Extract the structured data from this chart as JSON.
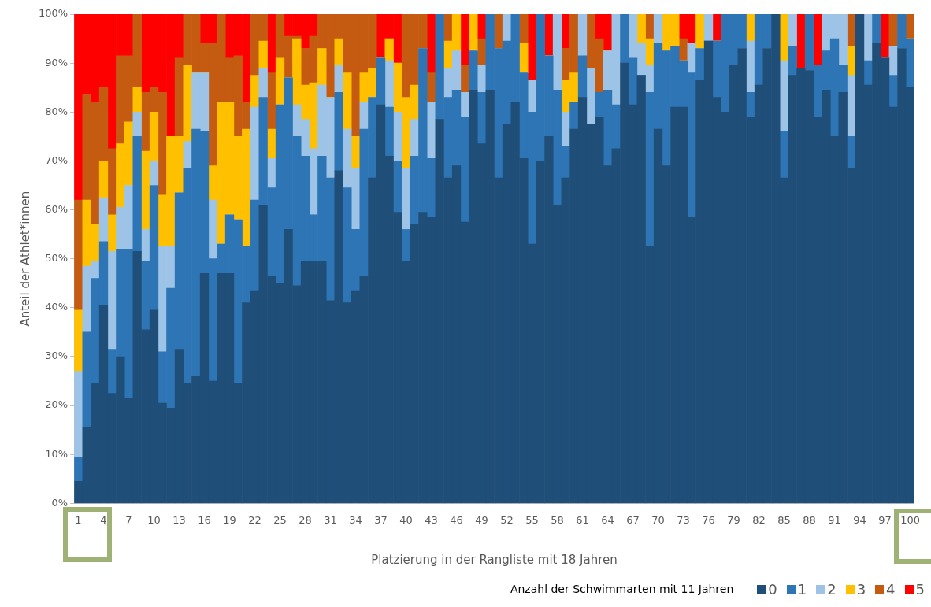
{
  "chart_data": {
    "type": "bar",
    "stacked": true,
    "xlabel": "Platzierung in der Rangliste mit 18 Jahren",
    "ylabel": "Anteil der Athlet*innen",
    "legend_title": "Anzahl der Schwimmarten mit 11 Jahren",
    "legend": "bottom right",
    "grid": false,
    "ylim": [
      0,
      100
    ],
    "yticks": [
      {
        "value": 0,
        "label": "0%"
      },
      {
        "value": 10,
        "label": "10%"
      },
      {
        "value": 20,
        "label": "20%"
      },
      {
        "value": 30,
        "label": "30%"
      },
      {
        "value": 40,
        "label": "40%"
      },
      {
        "value": 50,
        "label": "50%"
      },
      {
        "value": 60,
        "label": "60%"
      },
      {
        "value": 70,
        "label": "70%"
      },
      {
        "value": 80,
        "label": "80%"
      },
      {
        "value": 90,
        "label": "90%"
      },
      {
        "value": 100,
        "label": "100%"
      }
    ],
    "categories": [
      "1",
      null,
      null,
      "4",
      null,
      null,
      "7",
      null,
      null,
      "10",
      null,
      null,
      "13",
      null,
      null,
      "16",
      null,
      null,
      "19",
      null,
      null,
      "22",
      null,
      null,
      "25",
      null,
      null,
      "28",
      null,
      null,
      "31",
      null,
      null,
      "34",
      null,
      null,
      "37",
      null,
      null,
      "40",
      null,
      null,
      "43",
      null,
      null,
      "46",
      null,
      null,
      "49",
      null,
      null,
      "52",
      null,
      null,
      "55",
      null,
      null,
      "58",
      null,
      null,
      "61",
      null,
      null,
      "64",
      null,
      null,
      "67",
      null,
      null,
      "70",
      null,
      null,
      "73",
      null,
      null,
      "76",
      null,
      null,
      "79",
      null,
      null,
      "82",
      null,
      null,
      "85",
      null,
      null,
      "88",
      null,
      null,
      "91",
      null,
      null,
      "94",
      null,
      null,
      "97",
      null,
      null,
      "100"
    ],
    "series": [
      {
        "name": "0",
        "color": "#1f4e79",
        "values": [
          4.5,
          15.5,
          24.5,
          40.5,
          22.5,
          30,
          21.5,
          51.5,
          35.5,
          39.5,
          20.5,
          19.5,
          31.5,
          24.5,
          26,
          47,
          25,
          47,
          47,
          24.5,
          41,
          43.5,
          61,
          46.5,
          45,
          56,
          44.5,
          49.5,
          49.5,
          49.5,
          41.5,
          68,
          41,
          43.5,
          46.5,
          66.5,
          81.5,
          71,
          59.5,
          49.5,
          57,
          59.5,
          58.5,
          78.5,
          66.5,
          69,
          57.5,
          84.5,
          73.5,
          84.5,
          66.5,
          77.5,
          82,
          70.5,
          53,
          70,
          75,
          61,
          66.5,
          76.5,
          83,
          77.5,
          79,
          69,
          72.5,
          90,
          81.5,
          87.5,
          52.5,
          76.5,
          69,
          81,
          81,
          58.5,
          86.5,
          94.5,
          83,
          80,
          89.5,
          93,
          79,
          85.5,
          93,
          100,
          66.5,
          87.5,
          89,
          88.5,
          79,
          84.5,
          75,
          84,
          68.5,
          100,
          85.5,
          94,
          91,
          81,
          93,
          85
        ]
      },
      {
        "name": "1",
        "color": "#2e75b6",
        "values": [
          5,
          19.5,
          21.5,
          13,
          9,
          22,
          30.5,
          23.5,
          14,
          25.5,
          10.5,
          24.5,
          32,
          44,
          50.5,
          29,
          25,
          6,
          12,
          33.5,
          11.5,
          18.5,
          22,
          18,
          36.5,
          31,
          30.5,
          21.5,
          9.5,
          21.5,
          25,
          16,
          23.5,
          12.5,
          30,
          16.5,
          9.5,
          10,
          10.5,
          6.5,
          14,
          33.5,
          12,
          21.5,
          16.5,
          15.5,
          21.5,
          8,
          10.5,
          15.5,
          26.5,
          17,
          18,
          17.5,
          27,
          30,
          16.5,
          23.5,
          6.5,
          5.5,
          8.5,
          0,
          5,
          15.5,
          9,
          10,
          9.5,
          0,
          31.5,
          17.5,
          23.5,
          12.5,
          9.5,
          29.5,
          6.5,
          0,
          11.5,
          20,
          10.5,
          7,
          5,
          14.5,
          7,
          0,
          9.5,
          6,
          0,
          11.5,
          10.5,
          8,
          20,
          5.5,
          6.5,
          0,
          5,
          6,
          0,
          6.5,
          7,
          10
        ]
      },
      {
        "name": "2",
        "color": "#9dc3e6",
        "values": [
          17.5,
          13.5,
          3.5,
          9,
          20,
          8.5,
          13,
          5,
          6.5,
          5,
          21.5,
          8.5,
          0,
          5.5,
          11.5,
          12,
          12,
          0,
          0,
          0,
          0,
          19,
          6,
          6,
          0,
          0,
          6.5,
          7.5,
          13.5,
          14.5,
          16.5,
          5.5,
          12,
          12.5,
          5.5,
          0,
          0,
          9.5,
          10,
          12.5,
          7.5,
          0,
          11.5,
          0,
          6,
          8,
          5,
          0,
          5.5,
          0,
          0,
          5.5,
          0,
          0,
          6.5,
          0,
          0,
          15.5,
          7,
          0,
          8.5,
          11.5,
          0,
          8,
          18.5,
          0,
          9,
          6.5,
          5.5,
          6,
          0,
          0,
          0,
          6,
          0,
          5.5,
          0,
          0,
          0,
          0,
          10.5,
          0,
          0,
          0,
          14.5,
          6.5,
          0,
          0,
          0,
          7.5,
          5,
          10.5,
          12.5,
          0,
          9.5,
          0,
          0,
          6,
          0,
          0
        ]
      },
      {
        "name": "3",
        "color": "#ffc000",
        "values": [
          12.5,
          13.5,
          7.5,
          7.5,
          7.5,
          13,
          13,
          5,
          16,
          10,
          10.5,
          22.5,
          11.5,
          15.5,
          0,
          0,
          7,
          29,
          23,
          17,
          24,
          6.5,
          5.5,
          6,
          9.5,
          0,
          13.5,
          7,
          13.5,
          7.5,
          0,
          5.5,
          11.5,
          6.5,
          6,
          6,
          0,
          4.5,
          10,
          14.5,
          7,
          0,
          0,
          0,
          5.5,
          7.5,
          0,
          7.5,
          0,
          0,
          0,
          0,
          0,
          6,
          0,
          0,
          0,
          0,
          6.5,
          6,
          0,
          0,
          0,
          0,
          0,
          0,
          0,
          6,
          5.5,
          0,
          7.5,
          6.5,
          0,
          0,
          7,
          0,
          0,
          0,
          0,
          0,
          5.5,
          0,
          0,
          0,
          9.5,
          0,
          0,
          0,
          0,
          0,
          0,
          0,
          6,
          0,
          0,
          0,
          0,
          0,
          0,
          0
        ]
      },
      {
        "name": "4",
        "color": "#c55a11",
        "values": [
          22.5,
          21.5,
          25,
          15,
          13.5,
          18,
          13.5,
          15,
          12,
          5,
          21,
          0,
          16,
          10.5,
          12,
          6,
          25,
          18,
          9,
          16.5,
          5.5,
          12.5,
          5.5,
          11.5,
          9,
          8.5,
          0.5,
          7.5,
          9.5,
          7,
          17,
          5,
          12,
          25,
          12,
          11,
          0,
          0,
          0,
          17,
          14.5,
          7,
          6,
          0,
          5.5,
          0,
          5.5,
          0,
          5.5,
          0,
          7,
          0,
          0,
          6,
          0,
          0,
          0,
          0,
          6.5,
          12,
          0,
          11,
          11,
          0,
          0,
          0,
          0,
          0,
          5,
          0,
          0,
          0,
          4.5,
          0,
          0,
          0,
          0,
          0,
          0,
          0,
          0,
          0,
          0,
          0,
          0,
          0,
          0,
          0,
          0,
          0,
          0,
          0,
          6.5,
          0,
          0,
          0,
          0,
          6.5,
          0,
          5
        ]
      },
      {
        "name": "5",
        "color": "#ff0000",
        "values": [
          38,
          16.5,
          18,
          15,
          27.5,
          8.5,
          8.5,
          0,
          16,
          15,
          16,
          25,
          9,
          0,
          0,
          6,
          6,
          0,
          9,
          8.5,
          18,
          0,
          0,
          12,
          0,
          4.5,
          4.5,
          7,
          4.5,
          0,
          0,
          0,
          0,
          0,
          0,
          0,
          9,
          5,
          10,
          0,
          0,
          0,
          12,
          0,
          0,
          0,
          10.5,
          0,
          5,
          0,
          0,
          0,
          0,
          0,
          13.5,
          0,
          8.5,
          0,
          7,
          0,
          0,
          0,
          5,
          7.5,
          0,
          0,
          0,
          0,
          0,
          0,
          0,
          0,
          5,
          6,
          0,
          0,
          5.5,
          0,
          0,
          0,
          0,
          0,
          0,
          0,
          0,
          0,
          11,
          0,
          10.5,
          0,
          0,
          0,
          0,
          0,
          0,
          0,
          9,
          0,
          0,
          0
        ]
      }
    ]
  }
}
